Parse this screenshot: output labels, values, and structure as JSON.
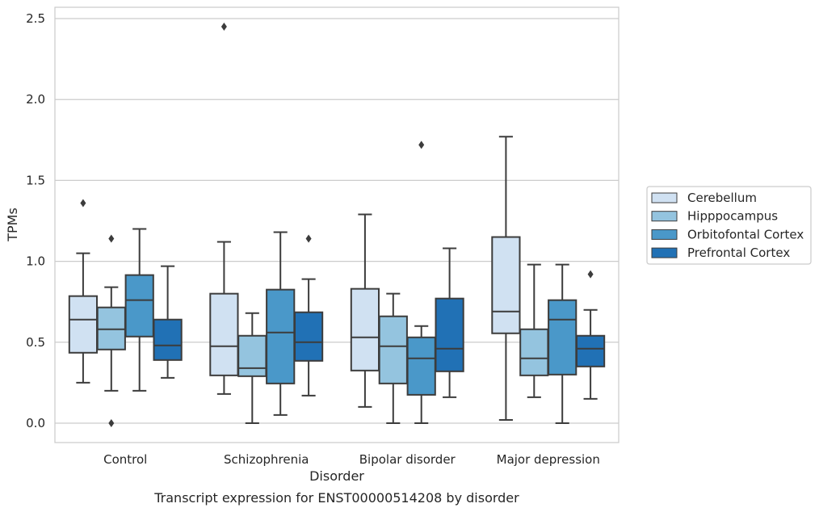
{
  "chart_data": {
    "type": "boxplot",
    "caption": "Transcript expression for ENST00000514208 by disorder",
    "xlabel": "Disorder",
    "ylabel": "TPMs",
    "ylim": [
      -0.12,
      2.57
    ],
    "yticks": [
      0.0,
      0.5,
      1.0,
      1.5,
      2.0,
      2.5
    ],
    "ytick_labels": [
      "0.0",
      "0.5",
      "1.0",
      "1.5",
      "2.0",
      "2.5"
    ],
    "grid": true,
    "legend_position": "center-right",
    "categories": [
      "Control",
      "Schizophrenia",
      "Bipolar disorder",
      "Major depression"
    ],
    "series": [
      {
        "name": "Cerebellum",
        "color": "#d0e1f2",
        "boxes": [
          {
            "whisker_low": 0.25,
            "q1": 0.435,
            "median": 0.64,
            "q3": 0.785,
            "whisker_high": 1.05,
            "outliers": [
              1.36
            ]
          },
          {
            "whisker_low": 0.18,
            "q1": 0.295,
            "median": 0.475,
            "q3": 0.8,
            "whisker_high": 1.12,
            "outliers": [
              2.45
            ]
          },
          {
            "whisker_low": 0.1,
            "q1": 0.325,
            "median": 0.53,
            "q3": 0.83,
            "whisker_high": 1.29,
            "outliers": []
          },
          {
            "whisker_low": 0.02,
            "q1": 0.555,
            "median": 0.69,
            "q3": 1.15,
            "whisker_high": 1.77,
            "outliers": []
          }
        ]
      },
      {
        "name": "Hipppocampus",
        "color": "#94c4df",
        "boxes": [
          {
            "whisker_low": 0.2,
            "q1": 0.455,
            "median": 0.58,
            "q3": 0.715,
            "whisker_high": 0.84,
            "outliers": [
              0.0,
              1.14
            ]
          },
          {
            "whisker_low": 0.0,
            "q1": 0.29,
            "median": 0.34,
            "q3": 0.54,
            "whisker_high": 0.68,
            "outliers": []
          },
          {
            "whisker_low": 0.0,
            "q1": 0.245,
            "median": 0.475,
            "q3": 0.66,
            "whisker_high": 0.8,
            "outliers": []
          },
          {
            "whisker_low": 0.16,
            "q1": 0.295,
            "median": 0.4,
            "q3": 0.58,
            "whisker_high": 0.98,
            "outliers": []
          }
        ]
      },
      {
        "name": "Orbitofontal Cortex",
        "color": "#4a98c9",
        "boxes": [
          {
            "whisker_low": 0.2,
            "q1": 0.535,
            "median": 0.76,
            "q3": 0.915,
            "whisker_high": 1.2,
            "outliers": []
          },
          {
            "whisker_low": 0.05,
            "q1": 0.245,
            "median": 0.56,
            "q3": 0.825,
            "whisker_high": 1.18,
            "outliers": []
          },
          {
            "whisker_low": 0.0,
            "q1": 0.175,
            "median": 0.4,
            "q3": 0.53,
            "whisker_high": 0.6,
            "outliers": [
              1.72
            ]
          },
          {
            "whisker_low": 0.0,
            "q1": 0.3,
            "median": 0.64,
            "q3": 0.76,
            "whisker_high": 0.98,
            "outliers": []
          }
        ]
      },
      {
        "name": "Prefrontal Cortex",
        "color": "#2171b5",
        "boxes": [
          {
            "whisker_low": 0.28,
            "q1": 0.39,
            "median": 0.48,
            "q3": 0.64,
            "whisker_high": 0.97,
            "outliers": []
          },
          {
            "whisker_low": 0.17,
            "q1": 0.385,
            "median": 0.5,
            "q3": 0.685,
            "whisker_high": 0.89,
            "outliers": [
              1.14
            ]
          },
          {
            "whisker_low": 0.16,
            "q1": 0.32,
            "median": 0.46,
            "q3": 0.77,
            "whisker_high": 1.08,
            "outliers": []
          },
          {
            "whisker_low": 0.15,
            "q1": 0.35,
            "median": 0.46,
            "q3": 0.54,
            "whisker_high": 0.7,
            "outliers": [
              0.92
            ]
          }
        ]
      }
    ]
  }
}
